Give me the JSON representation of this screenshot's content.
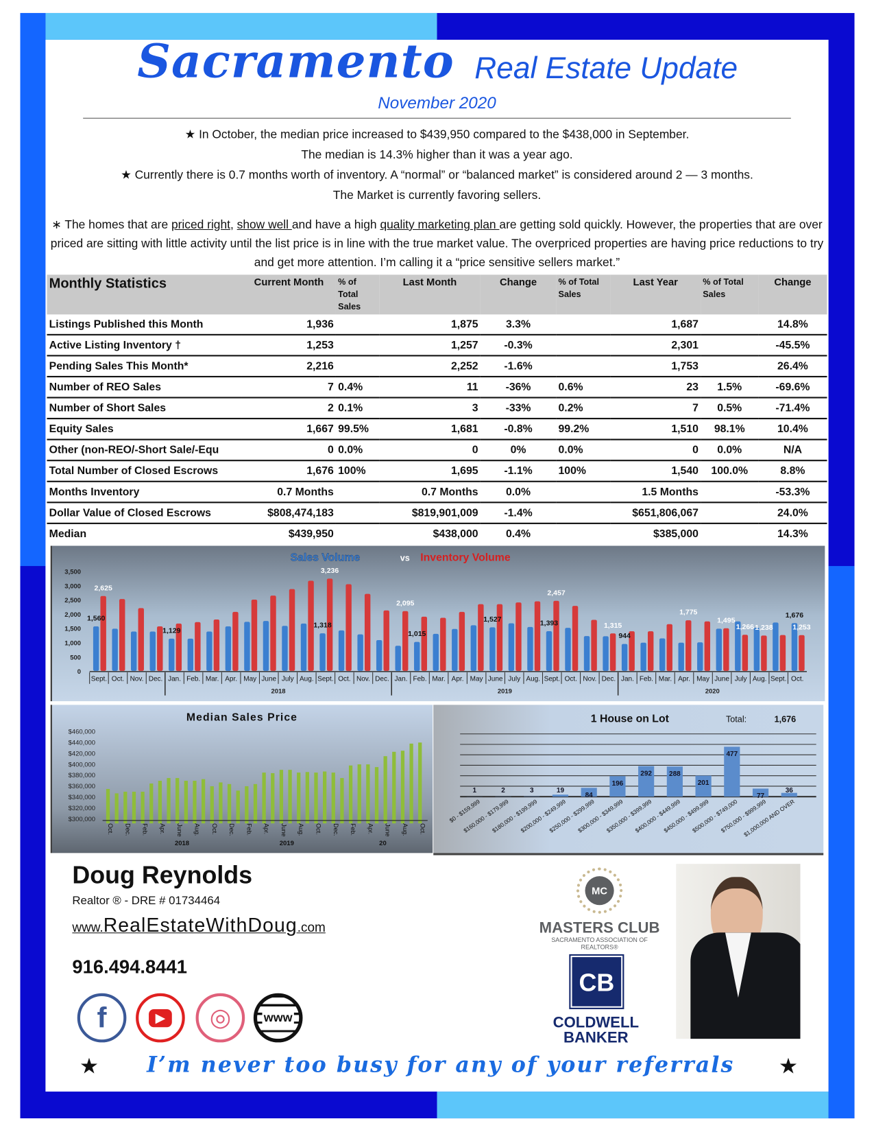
{
  "colors": {
    "brand_blue": "#1a56e0",
    "frame_dark": "#0a0ad0",
    "frame_bright": "#1466ff",
    "frame_light": "#5cc6fa",
    "sales_bar": "#3b7fd0",
    "inventory_bar": "#d63a3a",
    "median_bar": "#8fbd3a",
    "lot_bar": "#5b8ccc"
  },
  "header": {
    "title_script": "Sacramento",
    "title_rest": "Real Estate Update",
    "subtitle": "November 2020"
  },
  "bullets": {
    "b1_line1": "In October, the median price increased to $439,950 compared to the $438,000 in September.",
    "b1_line2": "The median is 14.3% higher than it was a year ago.",
    "b2_line1": "Currently there is 0.7 months worth of inventory. A “normal” or “balanced market” is considered around 2 — 3 months.",
    "b2_line2": "The Market is currently favoring sellers.",
    "b3": {
      "t1": "The homes that are ",
      "u1": "priced right",
      "t2": ", ",
      "u2": "show well ",
      "t3": "and have a high ",
      "u3": "quality marketing plan ",
      "t4": "are getting sold quickly.  However, the properties that are over priced are sitting with little activity until the list price is in line with the true market value.  The overpriced properties are having price reductions to try and get more attention. I’m calling it a “price sensitive sellers market.”"
    },
    "star_icon": "★",
    "asterisk_icon": "∗"
  },
  "stats": {
    "headers": [
      "Monthly Statistics",
      "Current Month",
      "% of Total Sales",
      "Last Month",
      "Change",
      "% of Total Sales",
      "Last Year",
      "% of  Total Sales",
      "Change"
    ],
    "rows": [
      [
        "Listings Published this Month",
        "1,936",
        "",
        "1,875",
        "3.3%",
        "",
        "1,687",
        "",
        "14.8%"
      ],
      [
        "Active Listing Inventory †",
        "1,253",
        "",
        "1,257",
        "-0.3%",
        "",
        "2,301",
        "",
        "-45.5%"
      ],
      [
        "Pending Sales This Month*",
        "2,216",
        "",
        "2,252",
        "-1.6%",
        "",
        "1,753",
        "",
        "26.4%"
      ],
      [
        "Number of REO Sales",
        "7",
        "0.4%",
        "11",
        "-36%",
        "0.6%",
        "23",
        "1.5%",
        "-69.6%"
      ],
      [
        "Number of Short Sales",
        "2",
        "0.1%",
        "3",
        "-33%",
        "0.2%",
        "7",
        "0.5%",
        "-71.4%"
      ],
      [
        "Equity Sales",
        "1,667",
        "99.5%",
        "1,681",
        "-0.8%",
        "99.2%",
        "1,510",
        "98.1%",
        "10.4%"
      ],
      [
        "Other (non-REO/-Short Sale/-Equ",
        "0",
        "0.0%",
        "0",
        "0%",
        "0.0%",
        "0",
        "0.0%",
        "N/A"
      ],
      [
        "Total Number of Closed Escrows",
        "1,676",
        "100%",
        "1,695",
        "-1.1%",
        "100%",
        "1,540",
        "100.0%",
        "8.8%"
      ],
      [
        "Months Inventory",
        "0.7 Months",
        "",
        "0.7 Months",
        "0.0%",
        "",
        "1.5 Months",
        "",
        "-53.3%"
      ],
      [
        "Dollar Value of Closed Escrows",
        "$808,474,183",
        "",
        "$819,901,009",
        "-1.4%",
        "",
        "$651,806,067",
        "",
        "24.0%"
      ],
      [
        "Median",
        "$439,950",
        "",
        "$438,000",
        "0.4%",
        "",
        "$385,000",
        "",
        "14.3%"
      ]
    ]
  },
  "chart_data": [
    {
      "type": "bar",
      "title_part1": "Sales Volume",
      "title_vs": "vs",
      "title_part2": "Inventory Volume",
      "categories": [
        "Sept.",
        "Oct.",
        "Nov.",
        "Dec.",
        "Jan.",
        "Feb.",
        "Mar.",
        "Apr.",
        "May",
        "June",
        "July",
        "Aug.",
        "Sept.",
        "Oct.",
        "Nov.",
        "Dec.",
        "Jan.",
        "Feb.",
        "Mar.",
        "Apr.",
        "May",
        "June",
        "July",
        "Aug.",
        "Sept.",
        "Oct.",
        "Nov.",
        "Dec.",
        "Jan.",
        "Feb.",
        "Mar.",
        "Apr.",
        "May",
        "June",
        "July",
        "Aug.",
        "Sept.",
        "Oct."
      ],
      "year_groups": [
        {
          "label": "2018",
          "start": 4,
          "end": 15
        },
        {
          "label": "2019",
          "start": 16,
          "end": 27
        },
        {
          "label": "2020",
          "start": 28,
          "end": 37
        }
      ],
      "yticks": [
        "0",
        "500",
        "1,000",
        "1,500",
        "2,000",
        "2,500",
        "3,000",
        "3,500"
      ],
      "ylim": [
        0,
        3500
      ],
      "series": [
        {
          "name": "Sales Volume",
          "values": [
            1560,
            1480,
            1380,
            1380,
            1129,
            1130,
            1380,
            1560,
            1720,
            1750,
            1580,
            1660,
            1318,
            1420,
            1280,
            1080,
            880,
            1015,
            1300,
            1470,
            1600,
            1527,
            1670,
            1540,
            1393,
            1510,
            1220,
            1215,
            944,
            990,
            1140,
            990,
            1000,
            1480,
            1736,
            1510,
            1695,
            1676
          ]
        },
        {
          "name": "Inventory Volume",
          "values": [
            2625,
            2520,
            2200,
            1560,
            1660,
            1710,
            1800,
            2070,
            2500,
            2640,
            2870,
            3160,
            3236,
            3040,
            2700,
            2120,
            2095,
            1900,
            1860,
            2070,
            2340,
            2340,
            2400,
            2440,
            2457,
            2280,
            1790,
            1315,
            1390,
            1390,
            1640,
            1775,
            1736,
            1495,
            1266,
            1238,
            1257,
            1253
          ]
        }
      ],
      "data_labels": [
        {
          "i": 0,
          "s": 0,
          "text": "1,560"
        },
        {
          "i": 0,
          "s": 1,
          "text": "2,625"
        },
        {
          "i": 4,
          "s": 0,
          "text": "1,129"
        },
        {
          "i": 12,
          "s": 0,
          "text": "1,318"
        },
        {
          "i": 12,
          "s": 1,
          "text": "3,236"
        },
        {
          "i": 16,
          "s": 1,
          "text": "2,095"
        },
        {
          "i": 17,
          "s": 0,
          "text": "1,015"
        },
        {
          "i": 21,
          "s": 0,
          "text": "1,527"
        },
        {
          "i": 24,
          "s": 0,
          "text": "1,393"
        },
        {
          "i": 24,
          "s": 1,
          "text": "2,457"
        },
        {
          "i": 27,
          "s": 1,
          "text": "1,315"
        },
        {
          "i": 28,
          "s": 0,
          "text": "944"
        },
        {
          "i": 31,
          "s": 1,
          "text": "1,775"
        },
        {
          "i": 33,
          "s": 1,
          "text": "1,495"
        },
        {
          "i": 34,
          "s": 1,
          "text": "1,266"
        },
        {
          "i": 35,
          "s": 1,
          "text": "1,238"
        },
        {
          "i": 37,
          "s": 0,
          "text": "1,676"
        },
        {
          "i": 37,
          "s": 1,
          "text": "1,253"
        }
      ],
      "grid": false,
      "legend": "none"
    },
    {
      "type": "bar",
      "title": "Median Sales Price",
      "yticks": [
        "$300,000",
        "$320,000",
        "$340,000",
        "$360,000",
        "$380,000",
        "$400,000",
        "$420,000",
        "$440,000",
        "$460,000"
      ],
      "ylim": [
        300000,
        460000
      ],
      "xtick_labels": [
        "Oct.",
        "Dec.",
        "Feb.",
        "Apr.",
        "June",
        "Aug.",
        "Oct.",
        "Dec.",
        "Feb.",
        "Apr.",
        "June",
        "Aug.",
        "Oct.",
        "Dec.",
        "Feb.",
        "Apr.",
        "June",
        "Aug.",
        "Oct."
      ],
      "year_labels": [
        "2018",
        "2019",
        "20"
      ],
      "values": [
        355000,
        347000,
        350000,
        350000,
        350000,
        365000,
        370000,
        375000,
        375000,
        370000,
        370000,
        373000,
        360000,
        367000,
        364000,
        352000,
        360000,
        364000,
        385000,
        384000,
        390000,
        390000,
        385000,
        386000,
        385000,
        387000,
        385000,
        375000,
        398000,
        400000,
        400000,
        395000,
        415000,
        423000,
        425000,
        438000,
        439950
      ],
      "grid": false,
      "legend": "none"
    },
    {
      "type": "bar",
      "title": "1 House on Lot",
      "total_label": "Total:",
      "total_value": "1,676",
      "categories": [
        "$0 - $159,999",
        "$160,000 - $179,999",
        "$180,000 - $199,999",
        "$200,000 - $249,999",
        "$250,000 - $299,999",
        "$300,000 - $349,999",
        "$350,000 - $399,999",
        "$400,000 - $449,999",
        "$450,000 - $499,999",
        "$500,000 - $749,000",
        "$750,000 - $999,999",
        "$1,000,000 AND OVER"
      ],
      "values": [
        1,
        2,
        3,
        19,
        84,
        196,
        292,
        288,
        201,
        477,
        77,
        36
      ],
      "ylim": [
        0,
        600
      ],
      "grid": true,
      "legend": "none"
    }
  ],
  "agent": {
    "name": "Doug Reynolds",
    "title": "Realtor ®   -  DRE # 01734464",
    "web_prefix": "www.",
    "web_main": "RealEstateWithDoug",
    "web_suffix": ".com",
    "phone": "916.494.8441"
  },
  "social": [
    {
      "icon": "facebook-icon",
      "glyph": "f",
      "color": "#3b5998"
    },
    {
      "icon": "youtube-icon",
      "glyph": "▶",
      "color": "#e02020"
    },
    {
      "icon": "instagram-icon",
      "glyph": "◎",
      "color": "#e0607a"
    },
    {
      "icon": "www-globe-icon",
      "glyph": "www",
      "color": "#111111"
    }
  ],
  "logos": {
    "masters_club": "MASTERS CLUB",
    "masters_sub": "SACRAMENTO ASSOCIATION OF REALTORS®",
    "masters_badge": "MC",
    "cb_mark": "CB",
    "cb_name1": "COLDWELL",
    "cb_name2": "BANKER"
  },
  "footer": {
    "tagline": "I’m never too busy for any of your referrals",
    "star": "★"
  }
}
